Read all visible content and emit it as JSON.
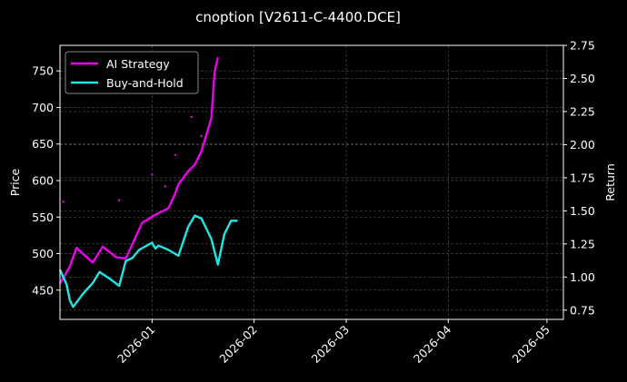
{
  "chart_data": {
    "type": "line",
    "title": "cnoption [V2611-C-4400.DCE]",
    "xlabel": "",
    "ylabel": "Price",
    "y2label": "Return",
    "x_ticks": [
      "2026-01",
      "2026-02",
      "2026-03",
      "2026-04",
      "2026-05"
    ],
    "xlim": [
      "2025-12-04",
      "2026-05-06"
    ],
    "ylim": [
      410,
      785
    ],
    "y_ticks": [
      450,
      500,
      550,
      600,
      650,
      700,
      750
    ],
    "y2lim": [
      0.68,
      2.75
    ],
    "y2_ticks": [
      "0.75",
      "1.00",
      "1.25",
      "1.50",
      "1.75",
      "2.00",
      "2.25",
      "2.50",
      "2.75"
    ],
    "grid": true,
    "legend_position": "top-left",
    "series": [
      {
        "name": "AI Strategy",
        "color": "#ee00ee",
        "axis": "right",
        "points": [
          [
            "2025-12-04",
            0.95
          ],
          [
            "2025-12-07",
            1.08
          ],
          [
            "2025-12-09",
            1.22
          ],
          [
            "2025-12-13",
            1.13
          ],
          [
            "2025-12-14",
            1.11
          ],
          [
            "2025-12-17",
            1.23
          ],
          [
            "2025-12-21",
            1.15
          ],
          [
            "2025-12-24",
            1.14
          ],
          [
            "2025-12-29",
            1.41
          ],
          [
            "2025-12-31",
            1.44
          ],
          [
            "2026-01-02",
            1.47
          ],
          [
            "2026-01-06",
            1.52
          ],
          [
            "2026-01-08",
            1.63
          ],
          [
            "2026-01-09",
            1.7
          ],
          [
            "2026-01-12",
            1.8
          ],
          [
            "2026-01-14",
            1.85
          ],
          [
            "2026-01-16",
            1.95
          ],
          [
            "2026-01-19",
            2.2
          ],
          [
            "2026-01-20",
            2.55
          ],
          [
            "2026-01-21",
            2.66
          ]
        ]
      },
      {
        "name": "Buy-and-Hold",
        "color": "#22e6e6",
        "axis": "left",
        "points": [
          [
            "2025-12-04",
            478
          ],
          [
            "2025-12-06",
            458
          ],
          [
            "2025-12-07",
            436
          ],
          [
            "2025-12-08",
            427
          ],
          [
            "2025-12-11",
            445
          ],
          [
            "2025-12-14",
            460
          ],
          [
            "2025-12-16",
            475
          ],
          [
            "2025-12-19",
            466
          ],
          [
            "2025-12-22",
            456
          ],
          [
            "2025-12-24",
            490
          ],
          [
            "2025-12-26",
            494
          ],
          [
            "2025-12-28",
            505
          ],
          [
            "2026-01-01",
            515
          ],
          [
            "2026-01-02",
            507
          ],
          [
            "2026-01-03",
            511
          ],
          [
            "2026-01-06",
            505
          ],
          [
            "2026-01-09",
            497
          ],
          [
            "2026-01-12",
            537
          ],
          [
            "2026-01-14",
            552
          ],
          [
            "2026-01-16",
            548
          ],
          [
            "2026-01-19",
            520
          ],
          [
            "2026-01-21",
            485
          ],
          [
            "2026-01-23",
            527
          ],
          [
            "2026-01-25",
            545
          ],
          [
            "2026-01-27",
            545
          ]
        ]
      }
    ],
    "scatter_markers": {
      "color": "#ee00ee",
      "axis": "left",
      "points": [
        [
          "2025-12-05",
          571
        ],
        [
          "2025-12-22",
          573
        ],
        [
          "2026-01-01",
          608
        ],
        [
          "2026-01-05",
          592
        ],
        [
          "2026-01-08",
          635
        ],
        [
          "2026-01-13",
          687
        ],
        [
          "2026-01-16",
          661
        ]
      ]
    }
  }
}
